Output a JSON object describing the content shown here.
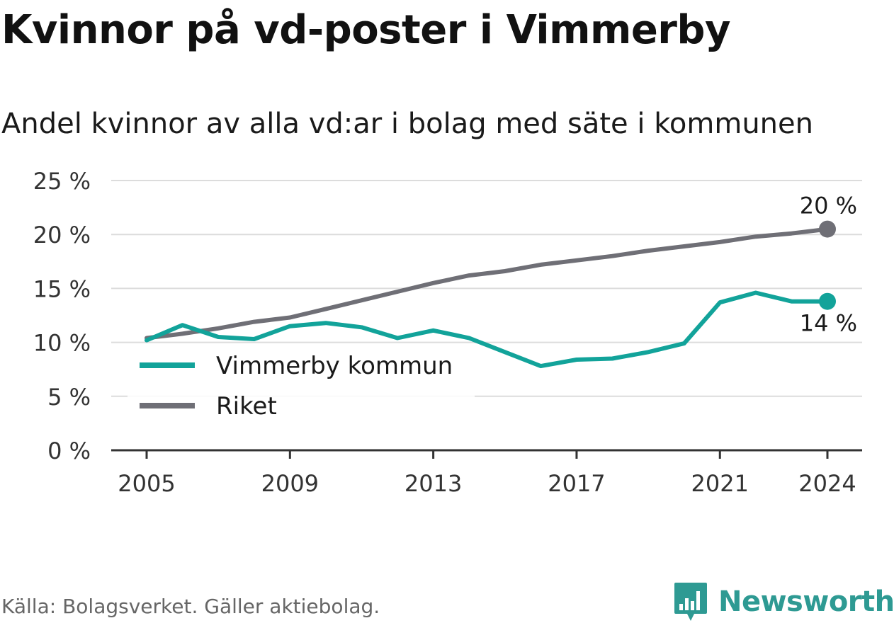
{
  "title": "Kvinnor på vd-poster i Vimmerby",
  "subtitle": "Andel kvinnor av alla vd:ar i bolag med säte i kommunen",
  "source": "Källa: Bolagsverket. Gäller aktiebolag.",
  "brand": "Newsworthy",
  "chart_data": {
    "type": "line",
    "x": [
      2005,
      2006,
      2007,
      2008,
      2009,
      2010,
      2011,
      2012,
      2013,
      2014,
      2015,
      2016,
      2017,
      2018,
      2019,
      2020,
      2021,
      2022,
      2023,
      2024
    ],
    "series": [
      {
        "name": "Vimmerby kommun",
        "color": "#12a39a",
        "values": [
          10.2,
          11.6,
          10.5,
          10.3,
          11.5,
          11.8,
          11.4,
          10.4,
          11.1,
          10.4,
          9.1,
          7.8,
          8.4,
          8.5,
          9.1,
          9.9,
          13.7,
          14.6,
          13.8,
          13.8
        ]
      },
      {
        "name": "Riket",
        "color": "#6f6f76",
        "values": [
          10.4,
          10.8,
          11.3,
          11.9,
          12.3,
          13.1,
          13.9,
          14.7,
          15.5,
          16.2,
          16.6,
          17.2,
          17.6,
          18.0,
          18.5,
          18.9,
          19.3,
          19.8,
          20.1,
          20.5
        ]
      }
    ],
    "end_labels": [
      "14 %",
      "20 %"
    ],
    "x_ticks": [
      "2005",
      "2009",
      "2013",
      "2017",
      "2021",
      "2024"
    ],
    "x_tick_values": [
      2005,
      2009,
      2013,
      2017,
      2021,
      2024
    ],
    "y_ticks": [
      "0 %",
      "5 %",
      "10 %",
      "15 %",
      "20 %",
      "25 %"
    ],
    "y_tick_values": [
      0,
      5,
      10,
      15,
      20,
      25
    ],
    "ylim": [
      0,
      25
    ],
    "grid": true,
    "legend_position": "bottom-left"
  }
}
